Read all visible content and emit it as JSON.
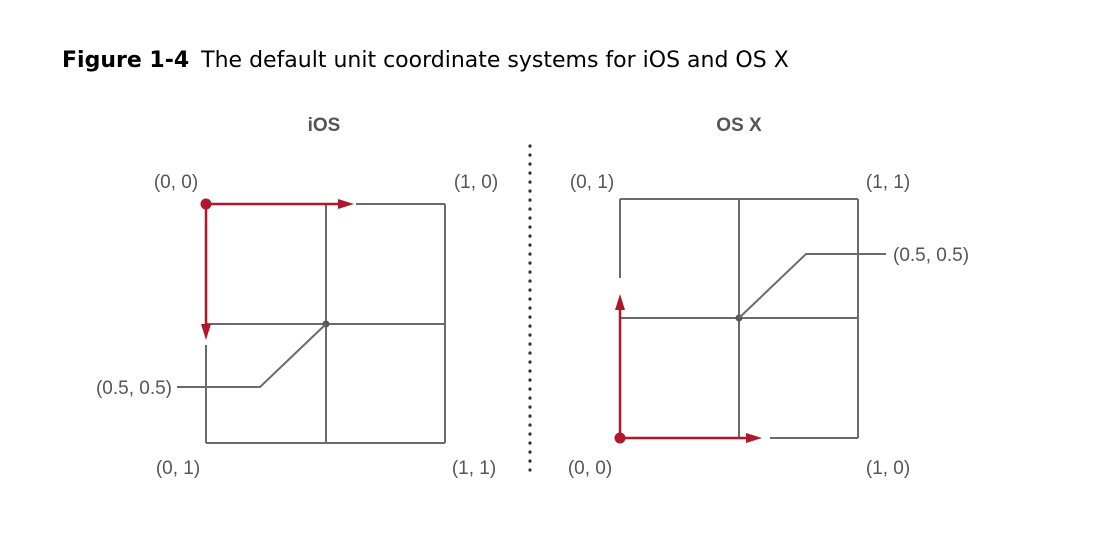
{
  "figure": {
    "label": "Figure 1-4",
    "title": "The default unit coordinate systems for iOS and OS X"
  },
  "colors": {
    "axis": "#b0172a",
    "grid": "#6b6b6b",
    "label": "#555555"
  },
  "ios": {
    "title": "iOS",
    "labels": {
      "top_left": "(0, 0)",
      "top_right": "(1, 0)",
      "bottom_left": "(0, 1)",
      "bottom_right": "(1, 1)",
      "center": "(0.5, 0.5)"
    }
  },
  "osx": {
    "title": "OS X",
    "labels": {
      "top_left": "(0, 1)",
      "top_right": "(1, 1)",
      "bottom_left": "(0, 0)",
      "bottom_right": "(1, 0)",
      "center": "(0.5, 0.5)"
    }
  }
}
